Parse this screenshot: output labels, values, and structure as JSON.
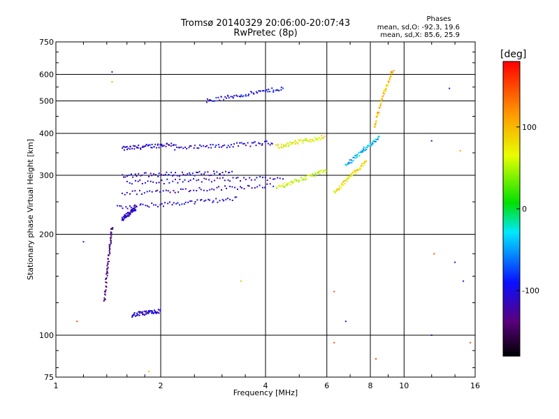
{
  "header": {
    "title_line1": "Tromsø 20140329 20:06:00-20:07:43",
    "title_line2": "RwPretec (8p)"
  },
  "phases_box": {
    "title": "Phases",
    "line_o": "mean, sd,O: -92.3, 19.6",
    "line_x": "mean, sd,X:  85.6, 25.9"
  },
  "colorbar": {
    "unit_label": "[deg]",
    "tick_labels": [
      "100",
      "0",
      "-100"
    ],
    "tick_values": [
      100,
      0,
      -100
    ],
    "range": [
      -180,
      180
    ]
  },
  "chart_data": {
    "type": "scatter",
    "title": "Tromsø 20140329 20:06:00-20:07:43",
    "subtitle": "RwPretec (8p)",
    "xlabel": "Frequency [MHz]",
    "ylabel": "Stationary phase Virtual Height [km]",
    "x_scale": "log",
    "y_scale": "log",
    "xlim": [
      1,
      16
    ],
    "ylim": [
      75,
      750
    ],
    "x_ticks": [
      1,
      2,
      4,
      6,
      8,
      10,
      16
    ],
    "x_tick_labels": [
      "1",
      "2",
      "4",
      "6",
      "8",
      "10",
      "16"
    ],
    "y_ticks": [
      75,
      100,
      200,
      300,
      400,
      500,
      600,
      750
    ],
    "y_tick_labels": [
      "75",
      "100",
      "200",
      "300",
      "400",
      "500",
      "600",
      "750"
    ],
    "grid": true,
    "colorscale": "rainbow-black-to-red",
    "traces": [
      {
        "name": "",
        "freq": [
          1.55,
          2.2
        ],
        "height": [
          360,
          372
        ],
        "phase": -110
      },
      {
        "name": "",
        "freq": [
          2.2,
          4.2
        ],
        "height": [
          360,
          375
        ],
        "phase": -105
      },
      {
        "name": "",
        "freq": [
          1.55,
          3.2
        ],
        "height": [
          300,
          305
        ],
        "phase": -108
      },
      {
        "name": "",
        "freq": [
          1.6,
          4.5
        ],
        "height": [
          285,
          295
        ],
        "phase": -110
      },
      {
        "name": "",
        "freq": [
          1.55,
          4.2
        ],
        "height": [
          265,
          280
        ],
        "phase": -112
      },
      {
        "name": "",
        "freq": [
          1.5,
          3.3
        ],
        "height": [
          240,
          255
        ],
        "phase": -108
      },
      {
        "name": "",
        "freq": [
          1.55,
          1.7
        ],
        "height": [
          222,
          240
        ],
        "phase": -110
      },
      {
        "name": "",
        "freq": [
          2.7,
          4.5
        ],
        "height": [
          500,
          545
        ],
        "phase": -100
      },
      {
        "name": "",
        "freq": [
          4.3,
          6.0
        ],
        "height": [
          275,
          310
        ],
        "phase": 60
      },
      {
        "name": "",
        "freq": [
          4.3,
          5.9
        ],
        "height": [
          365,
          390
        ],
        "phase": 70
      },
      {
        "name": "",
        "freq": [
          6.3,
          7.8
        ],
        "height": [
          265,
          330
        ],
        "phase": 80
      },
      {
        "name": "",
        "freq": [
          6.8,
          8.5
        ],
        "height": [
          320,
          390
        ],
        "phase": -40
      },
      {
        "name": "",
        "freq": [
          8.2,
          9.3
        ],
        "height": [
          420,
          620
        ],
        "phase": 95
      },
      {
        "name": "",
        "freq": [
          1.65,
          2.0
        ],
        "height": [
          115,
          118
        ],
        "phase": -110
      },
      {
        "name": "",
        "freq": [
          1.38,
          1.45
        ],
        "height": [
          125,
          210
        ],
        "phase": -140
      }
    ],
    "scattered_points": [
      {
        "freq": 1.45,
        "height": 610,
        "phase": -110
      },
      {
        "freq": 1.45,
        "height": 570,
        "phase": 110
      },
      {
        "freq": 1.15,
        "height": 110,
        "phase": 150
      },
      {
        "freq": 1.2,
        "height": 190,
        "phase": -110
      },
      {
        "freq": 1.85,
        "height": 78,
        "phase": 100
      },
      {
        "freq": 8.3,
        "height": 85,
        "phase": 150
      },
      {
        "freq": 6.3,
        "height": 95,
        "phase": 150
      },
      {
        "freq": 12,
        "height": 100,
        "phase": -110
      },
      {
        "freq": 12,
        "height": 380,
        "phase": -110
      },
      {
        "freq": 13.5,
        "height": 545,
        "phase": -110
      },
      {
        "freq": 14.5,
        "height": 355,
        "phase": 110
      },
      {
        "freq": 15.5,
        "height": 95,
        "phase": 150
      },
      {
        "freq": 14,
        "height": 165,
        "phase": -110
      },
      {
        "freq": 14.8,
        "height": 145,
        "phase": -110
      },
      {
        "freq": 12.2,
        "height": 175,
        "phase": 150
      },
      {
        "freq": 6.3,
        "height": 135,
        "phase": 150
      },
      {
        "freq": 6.8,
        "height": 110,
        "phase": -110
      },
      {
        "freq": 3.4,
        "height": 145,
        "phase": 100
      }
    ]
  }
}
